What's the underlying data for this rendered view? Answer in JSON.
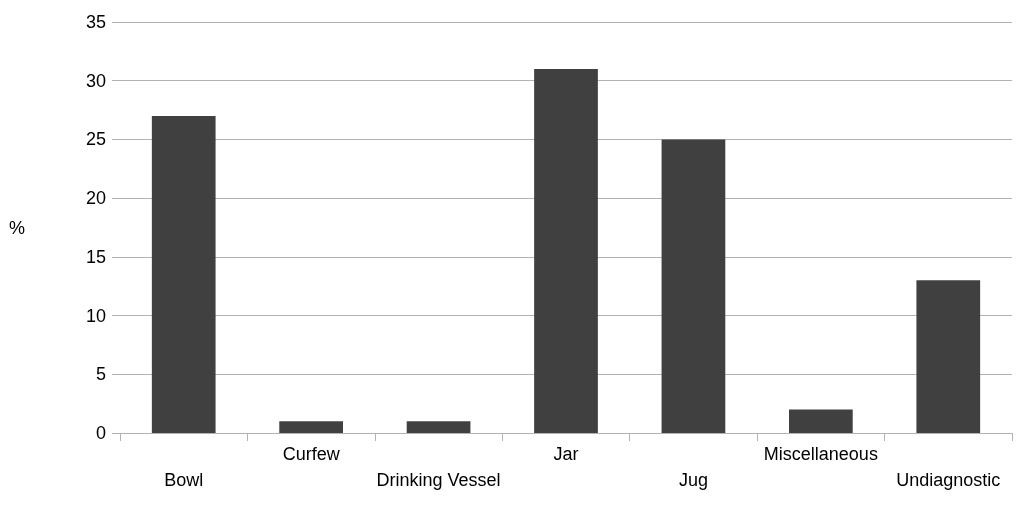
{
  "chart_data": {
    "type": "bar",
    "ylabel": "%",
    "categories": [
      "Bowl",
      "Curfew",
      "Drinking Vessel",
      "Jar",
      "Jug",
      "Miscellaneous",
      "Undiagnostic"
    ],
    "values": [
      27,
      1,
      1,
      31,
      25,
      2,
      13
    ],
    "color": "#404040",
    "ylim": [
      0,
      35
    ],
    "yticks": [
      0,
      5,
      10,
      15,
      20,
      25,
      30,
      35
    ],
    "grid": "y"
  }
}
